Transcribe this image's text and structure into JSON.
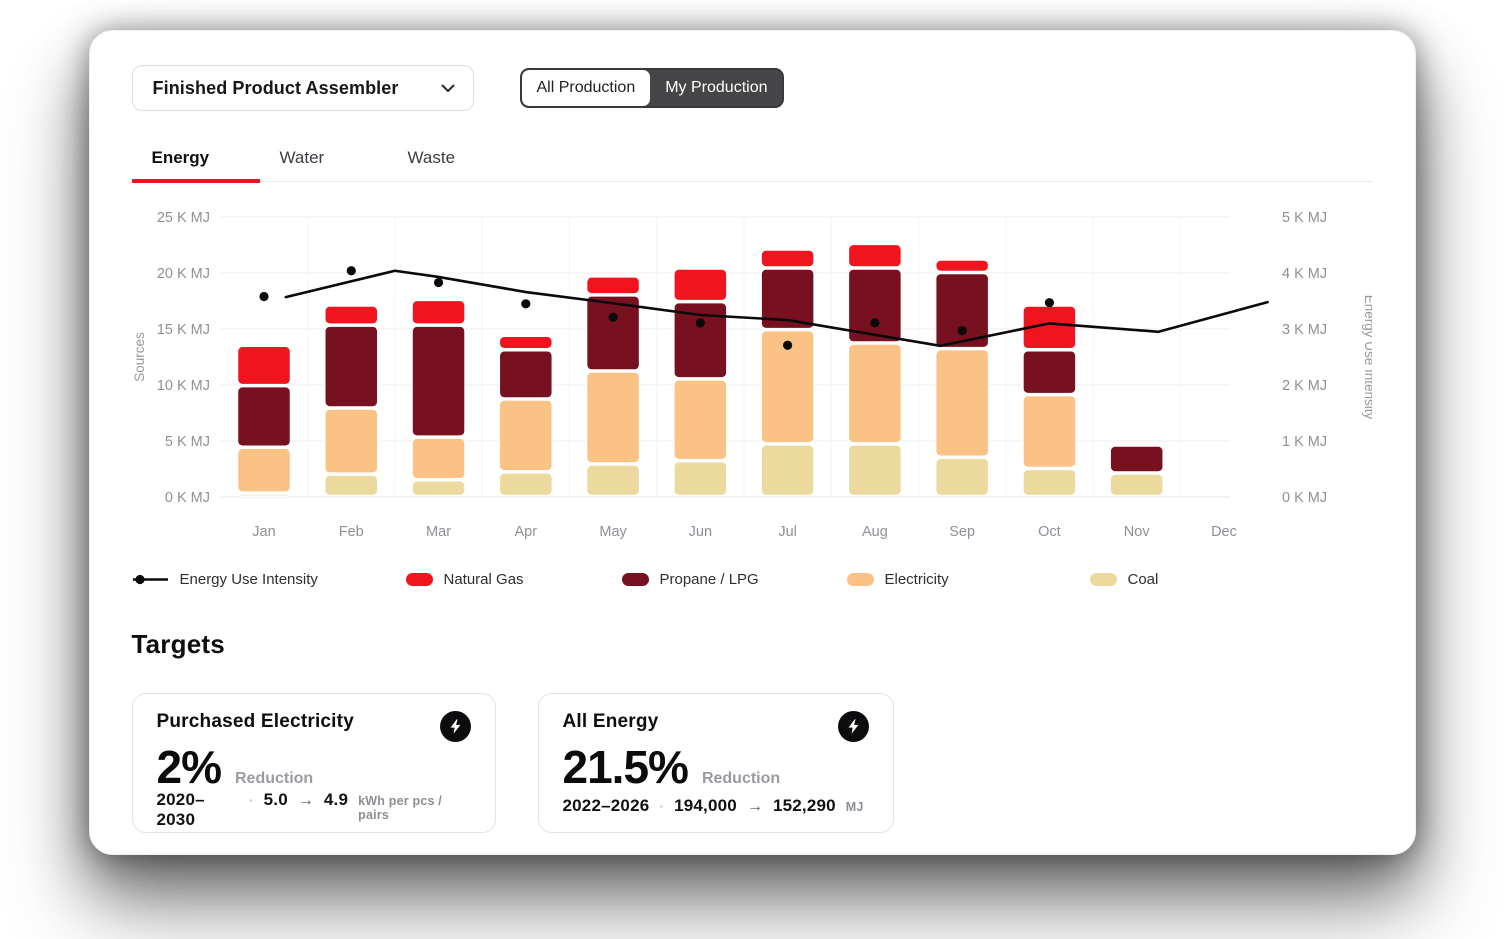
{
  "header": {
    "dropdown_label": "Finished Product Assembler",
    "toggle": {
      "options": [
        "All Production",
        "My Production"
      ],
      "selected": "My Production"
    }
  },
  "tabs": [
    {
      "label": "Energy",
      "active": true
    },
    {
      "label": "Water",
      "active": false
    },
    {
      "label": "Waste",
      "active": false
    }
  ],
  "chart_data": {
    "type": "bar+line",
    "categories": [
      "Jan",
      "Feb",
      "Mar",
      "Apr",
      "May",
      "Jun",
      "Jul",
      "Aug",
      "Sep",
      "Oct",
      "Nov",
      "Dec"
    ],
    "stack_unit": "K MJ",
    "bar_series": [
      {
        "name": "Coal",
        "color": "#ecd99e",
        "values": [
          0.3,
          2.0,
          1.5,
          2.2,
          2.9,
          3.2,
          4.7,
          4.7,
          3.5,
          2.5,
          2.1,
          0
        ]
      },
      {
        "name": "Electricity",
        "color": "#fbc285",
        "values": [
          4.1,
          5.9,
          3.8,
          6.5,
          8.3,
          7.3,
          10.2,
          9.0,
          9.7,
          6.6,
          0,
          0
        ]
      },
      {
        "name": "Propane / LPG",
        "color": "#77101f",
        "values": [
          5.5,
          7.4,
          10.0,
          4.4,
          6.8,
          6.9,
          5.5,
          6.7,
          6.8,
          4.0,
          2.5,
          0
        ]
      },
      {
        "name": "Natural Gas",
        "color": "#f0141e",
        "values": [
          3.6,
          1.8,
          2.3,
          1.3,
          1.7,
          3.0,
          1.7,
          2.2,
          1.2,
          4.0,
          0,
          0
        ]
      }
    ],
    "line_series": {
      "name": "Energy Use Intensity",
      "color": "#0a0a0a",
      "unit": "K MJ",
      "points": [
        {
          "m": 0.25,
          "v": 3.57
        },
        {
          "m": 1.5,
          "v": 4.04
        },
        {
          "m": 2,
          "v": 3.93
        },
        {
          "m": 3,
          "v": 3.66
        },
        {
          "m": 4,
          "v": 3.46
        },
        {
          "m": 5,
          "v": 3.25
        },
        {
          "m": 6,
          "v": 3.16
        },
        {
          "m": 7.75,
          "v": 2.7
        },
        {
          "m": 9,
          "v": 3.1
        },
        {
          "m": 10.25,
          "v": 2.95
        },
        {
          "m": 11.5,
          "v": 3.48
        }
      ]
    },
    "scatter_points": [
      {
        "m": 0,
        "v": 3.58
      },
      {
        "m": 1,
        "v": 4.04
      },
      {
        "m": 2,
        "v": 3.83
      },
      {
        "m": 3,
        "v": 3.45
      },
      {
        "m": 4,
        "v": 3.21
      },
      {
        "m": 5,
        "v": 3.11
      },
      {
        "m": 6,
        "v": 2.71
      },
      {
        "m": 7,
        "v": 3.11
      },
      {
        "m": 8,
        "v": 2.97
      },
      {
        "m": 9,
        "v": 3.47
      }
    ],
    "left_axis": {
      "title": "Sources",
      "ticks": [
        "25 K MJ",
        "20 K MJ",
        "15 K MJ",
        "10 K MJ",
        "5 K MJ",
        "0 K MJ"
      ],
      "min": 0,
      "max": 25,
      "step": 5
    },
    "right_axis": {
      "title": "Energy Use Intensity",
      "ticks": [
        "5 K MJ",
        "4 K MJ",
        "3 K MJ",
        "2 K MJ",
        "1 K MJ",
        "0 K MJ"
      ],
      "min": 0,
      "max": 5,
      "step": 1
    },
    "grid": true,
    "legend_position": "bottom"
  },
  "legend": {
    "items": [
      {
        "label": "Energy Use Intensity",
        "swatch": "line-dot",
        "color": "#0a0a0a"
      },
      {
        "label": "Natural Gas",
        "swatch": "rect",
        "color": "#f0141e"
      },
      {
        "label": "Propane / LPG",
        "swatch": "rect",
        "color": "#77101f"
      },
      {
        "label": "Electricity",
        "swatch": "rect",
        "color": "#fbc285"
      },
      {
        "label": "Coal",
        "swatch": "rect",
        "color": "#ecd99e"
      }
    ]
  },
  "targets": {
    "heading": "Targets",
    "separator": "·",
    "arrow": "→",
    "cards": [
      {
        "title": "Purchased Electricity",
        "percent": "2%",
        "percent_label": "Reduction",
        "period": "2020–2030",
        "from": "5.0",
        "to": "4.9",
        "unit": "kWh per pcs / pairs",
        "icon": "lightning-bolt"
      },
      {
        "title": "All Energy",
        "percent": "21.5%",
        "percent_label": "Reduction",
        "period": "2022–2026",
        "from": "194,000",
        "to": "152,290",
        "unit": "MJ",
        "icon": "lightning-bolt"
      }
    ]
  }
}
